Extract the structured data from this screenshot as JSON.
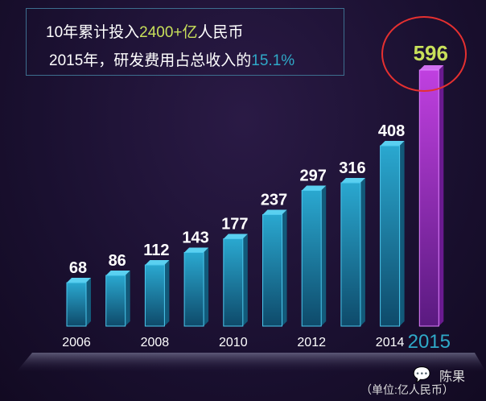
{
  "header": {
    "line1_prefix": "10年累计投入",
    "line1_highlight": "2400+亿",
    "line1_suffix": "人民币",
    "line2_prefix": "2015年，研发费用占总收入的",
    "line2_highlight": "15.1%"
  },
  "footer": {
    "unit": "（单位:亿人民币）",
    "author": "陈果",
    "wechat_icon": "wechat-icon"
  },
  "colors": {
    "bar": "#1f8fb5",
    "highlight_bar": "#a02cc0",
    "highlight_label": "#c8e05a",
    "year_highlight": "#2fa9c8",
    "circle": "#e53030"
  },
  "chart_data": {
    "type": "bar",
    "title": "",
    "xlabel": "",
    "ylabel": "",
    "categories": [
      "2006",
      "2007",
      "2008",
      "2009",
      "2010",
      "2011",
      "2012",
      "2013",
      "2014",
      "2015"
    ],
    "tick_labels": [
      "2006",
      "",
      "2008",
      "",
      "2010",
      "",
      "2012",
      "",
      "2014",
      "2015"
    ],
    "values": [
      68,
      86,
      112,
      143,
      177,
      237,
      297,
      316,
      408,
      596
    ],
    "highlight": "2015",
    "grid": false,
    "legend": "none"
  }
}
